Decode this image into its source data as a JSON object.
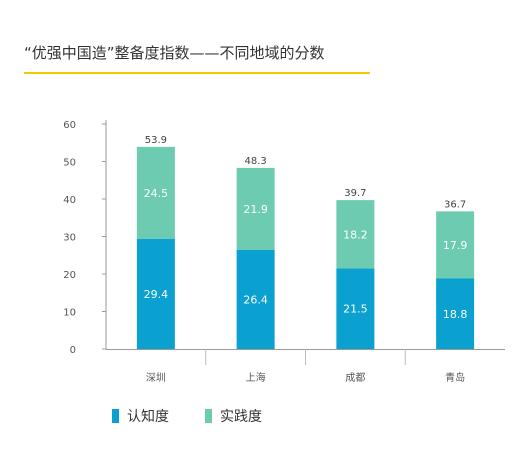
{
  "chart_data": {
    "type": "bar",
    "stacked": true,
    "title": "“优强中国造”整备度指数——不同地域的分数",
    "categories": [
      "深圳",
      "上海",
      "成都",
      "青岛"
    ],
    "series": [
      {
        "name": "认知度",
        "values": [
          29.4,
          26.4,
          21.5,
          18.8
        ],
        "color": "#0aa0cf"
      },
      {
        "name": "实践度",
        "values": [
          24.5,
          21.9,
          18.2,
          17.9
        ],
        "color": "#6ccbb1"
      }
    ],
    "totals": [
      53.9,
      48.3,
      39.7,
      36.7
    ],
    "ylim": [
      0,
      60
    ],
    "yticks": [
      0,
      10,
      20,
      30,
      40,
      50,
      60
    ],
    "grid": false,
    "legend_position": "bottom-left",
    "accent_color": "#f5c800"
  }
}
